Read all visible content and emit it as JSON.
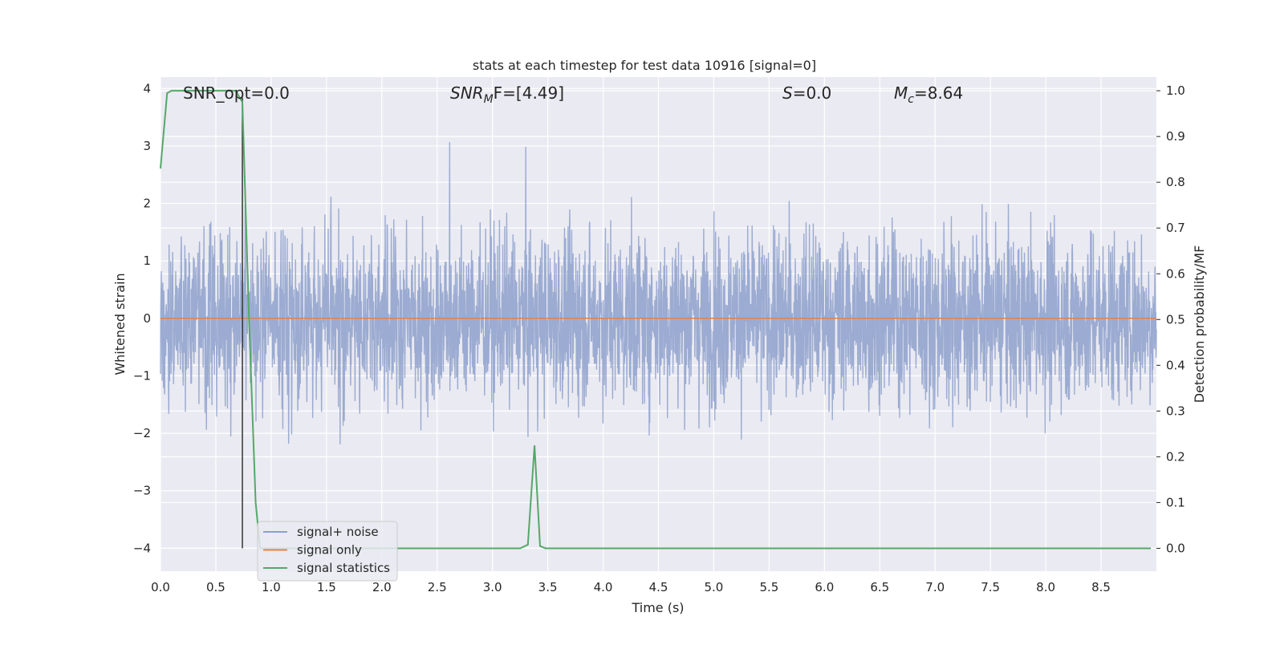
{
  "chart_data": {
    "type": "line",
    "title": "stats at each timestep for test data 10916 [signal=0]",
    "xlabel": "Time (s)",
    "ylabel": "Whitened strain",
    "y2label": "Detection probability/MF",
    "xlim": [
      0.0,
      9.0
    ],
    "ylim": [
      -4.4,
      4.2
    ],
    "y2lim": [
      -0.05,
      1.03
    ],
    "xticks": [
      "0.0",
      "0.5",
      "1.0",
      "1.5",
      "2.0",
      "2.5",
      "3.0",
      "3.5",
      "4.0",
      "4.5",
      "5.0",
      "5.5",
      "6.0",
      "6.5",
      "7.0",
      "7.5",
      "8.0",
      "8.5"
    ],
    "yticks": [
      "4",
      "3",
      "2",
      "1",
      "0",
      "−1",
      "−2",
      "−3",
      "−4"
    ],
    "y2ticks": [
      "1.0",
      "0.9",
      "0.8",
      "0.7",
      "0.6",
      "0.5",
      "0.4",
      "0.3",
      "0.2",
      "0.1",
      "0.0"
    ],
    "grid": true,
    "legend_position": "lower-left",
    "annotations": [
      {
        "id": "snr_opt",
        "label": "SNR_opt=0.0"
      },
      {
        "id": "snr_mf",
        "base": "SNR",
        "sub": "M",
        "rest": "F=[4.49]"
      },
      {
        "id": "s",
        "base": "S",
        "rest": "=0.0"
      },
      {
        "id": "mc",
        "base": "M",
        "sub": "c",
        "rest": "=8.64"
      }
    ],
    "vertical_marker_x": 0.74,
    "series": [
      {
        "name": "signal+ noise",
        "color": "#8da0cb",
        "description_kind": "noise",
        "x_range": [
          0.0,
          9.0
        ],
        "samples": 3600,
        "envelope": {
          "typical_abs": 1.6,
          "max": 3.85,
          "min": -3.9
        }
      },
      {
        "name": "signal only",
        "color": "#dd8452",
        "x": [
          0.0,
          9.0
        ],
        "y": [
          0.0,
          0.0
        ]
      },
      {
        "name": "signal statistics",
        "color": "#55a868",
        "axis": "right",
        "x": [
          0.0,
          0.06,
          0.1,
          0.2,
          0.3,
          0.4,
          0.5,
          0.6,
          0.68,
          0.74,
          0.8,
          0.86,
          0.9,
          1.0,
          2.0,
          3.0,
          3.25,
          3.32,
          3.38,
          3.43,
          3.48,
          4.0,
          5.0,
          6.0,
          7.0,
          8.0,
          8.95
        ],
        "y": [
          0.83,
          0.995,
          1.0,
          1.0,
          1.0,
          1.0,
          1.0,
          1.0,
          1.0,
          0.975,
          0.5,
          0.1,
          0.0,
          0.0,
          0.0,
          0.0,
          0.0,
          0.008,
          0.225,
          0.005,
          0.0,
          0.0,
          0.0,
          0.0,
          0.0,
          0.0,
          0.0
        ]
      }
    ],
    "legend_entries": [
      "signal+ noise",
      "signal only",
      "signal statistics"
    ]
  },
  "colors": {
    "plot_background": "#eaeaf2",
    "grid": "#ffffff",
    "text": "#262626",
    "marker_line": "#333333"
  }
}
